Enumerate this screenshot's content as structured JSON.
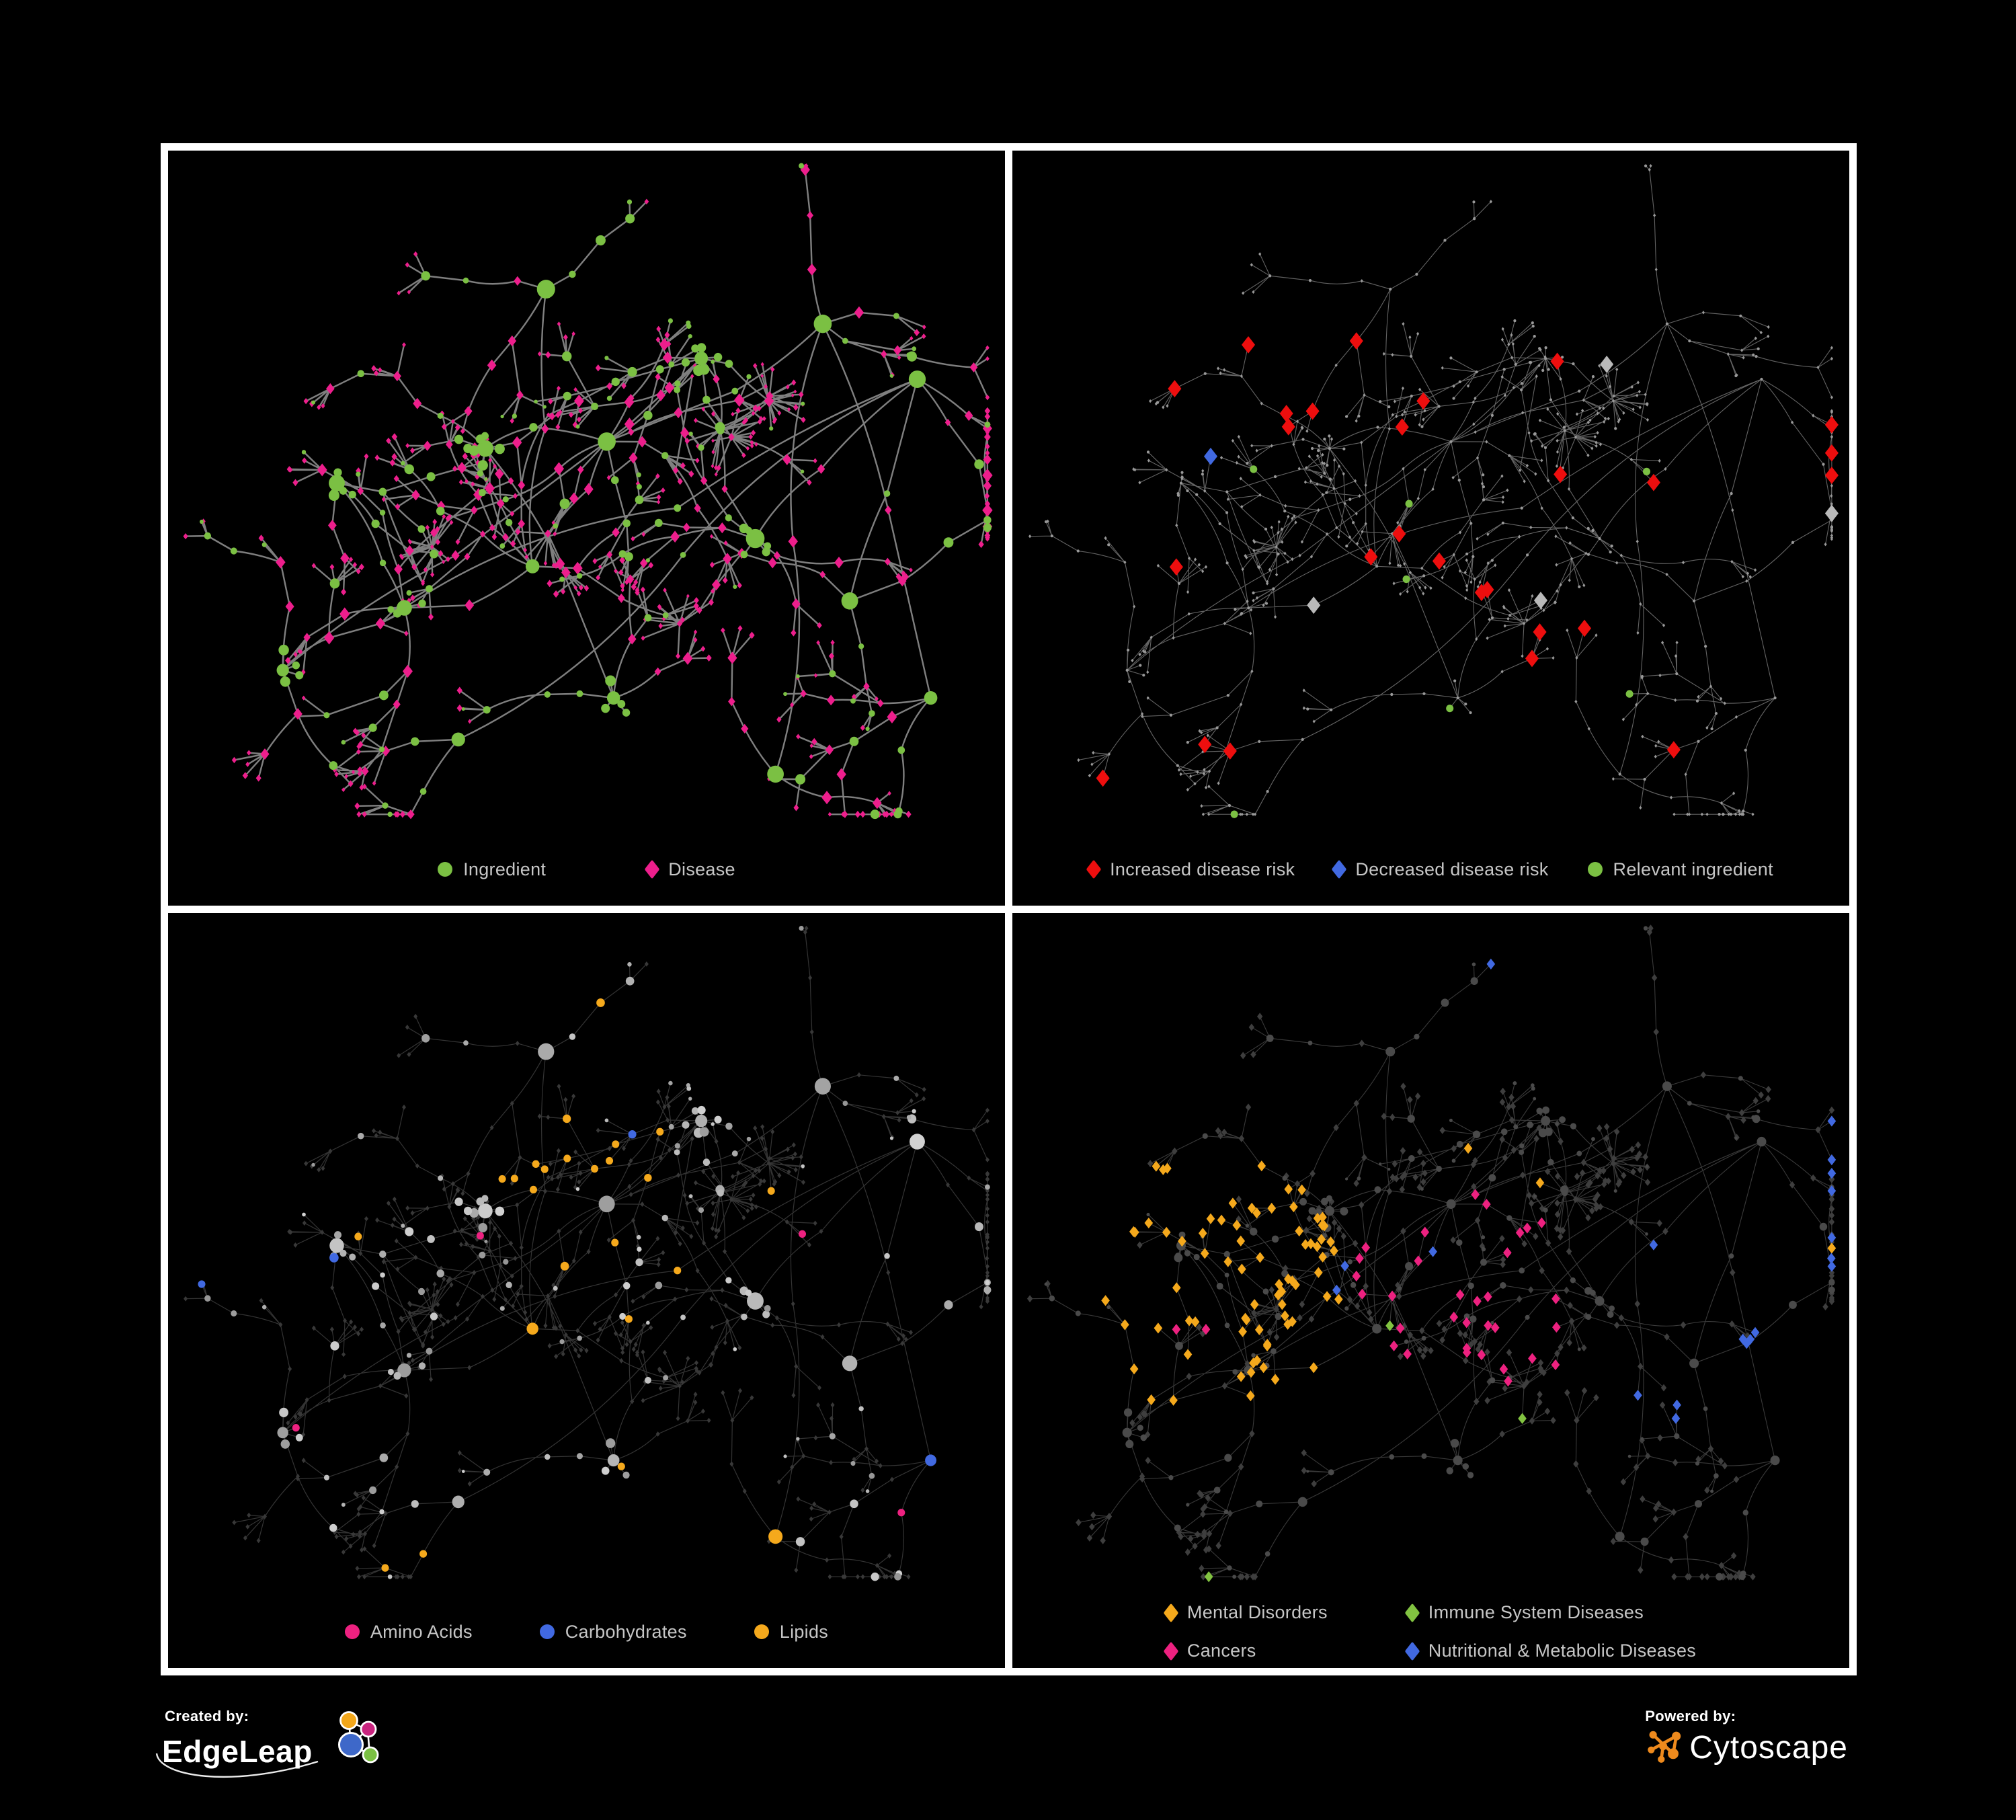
{
  "panels": [
    {
      "name": "ingredient-disease-network",
      "legend_layout": "row",
      "legend": [
        {
          "label": "Ingredient",
          "color": "#7BC043",
          "shape": "circle"
        },
        {
          "label": "Disease",
          "color": "#ED1E8C",
          "shape": "diamond"
        }
      ]
    },
    {
      "name": "disease-risk-network",
      "legend_layout": "row",
      "legend": [
        {
          "label": "Increased disease risk",
          "color": "#EE0E0E",
          "shape": "diamond"
        },
        {
          "label": "Decreased disease risk",
          "color": "#4169E1",
          "shape": "diamond"
        },
        {
          "label": "Relevant ingredient",
          "color": "#7BC043",
          "shape": "circle"
        }
      ]
    },
    {
      "name": "nutrient-class-network",
      "legend_layout": "row",
      "legend": [
        {
          "label": "Amino Acids",
          "color": "#ED2180",
          "shape": "circle"
        },
        {
          "label": "Carbohydrates",
          "color": "#4169E1",
          "shape": "circle"
        },
        {
          "label": "Lipids",
          "color": "#F5A91C",
          "shape": "circle"
        }
      ]
    },
    {
      "name": "disease-class-network",
      "legend_layout": "grid",
      "legend": [
        {
          "label": "Mental Disorders",
          "color": "#F5A91C",
          "shape": "diamond"
        },
        {
          "label": "Immune System Diseases",
          "color": "#82C341",
          "shape": "diamond"
        },
        {
          "label": "Cancers",
          "color": "#ED2180",
          "shape": "diamond"
        },
        {
          "label": "Nutritional & Metabolic Diseases",
          "color": "#4169E1",
          "shape": "diamond"
        }
      ]
    }
  ],
  "footer": {
    "created_by_label": "Created by:",
    "created_by_brand": "EdgeLeap",
    "powered_by_label": "Powered by:",
    "powered_by_brand": "Cytoscape"
  },
  "style": {
    "background": "#000000",
    "frame": "#FFFFFF",
    "legend_text": "#C6C6C6",
    "node_green": "#7BC043",
    "node_pink": "#ED1E8C",
    "node_red": "#EE0E0E",
    "node_blue": "#4169E1",
    "node_orange": "#F5A91C",
    "node_magenta": "#ED2180",
    "node_lime": "#82C341",
    "muted_node": "#999999",
    "dark_diamond": "#3E3E3E",
    "neutral_highlight": "#B9B9B9",
    "edge_gray": "#8A8A8A",
    "cytoscape_orange": "#EE8A1D"
  }
}
